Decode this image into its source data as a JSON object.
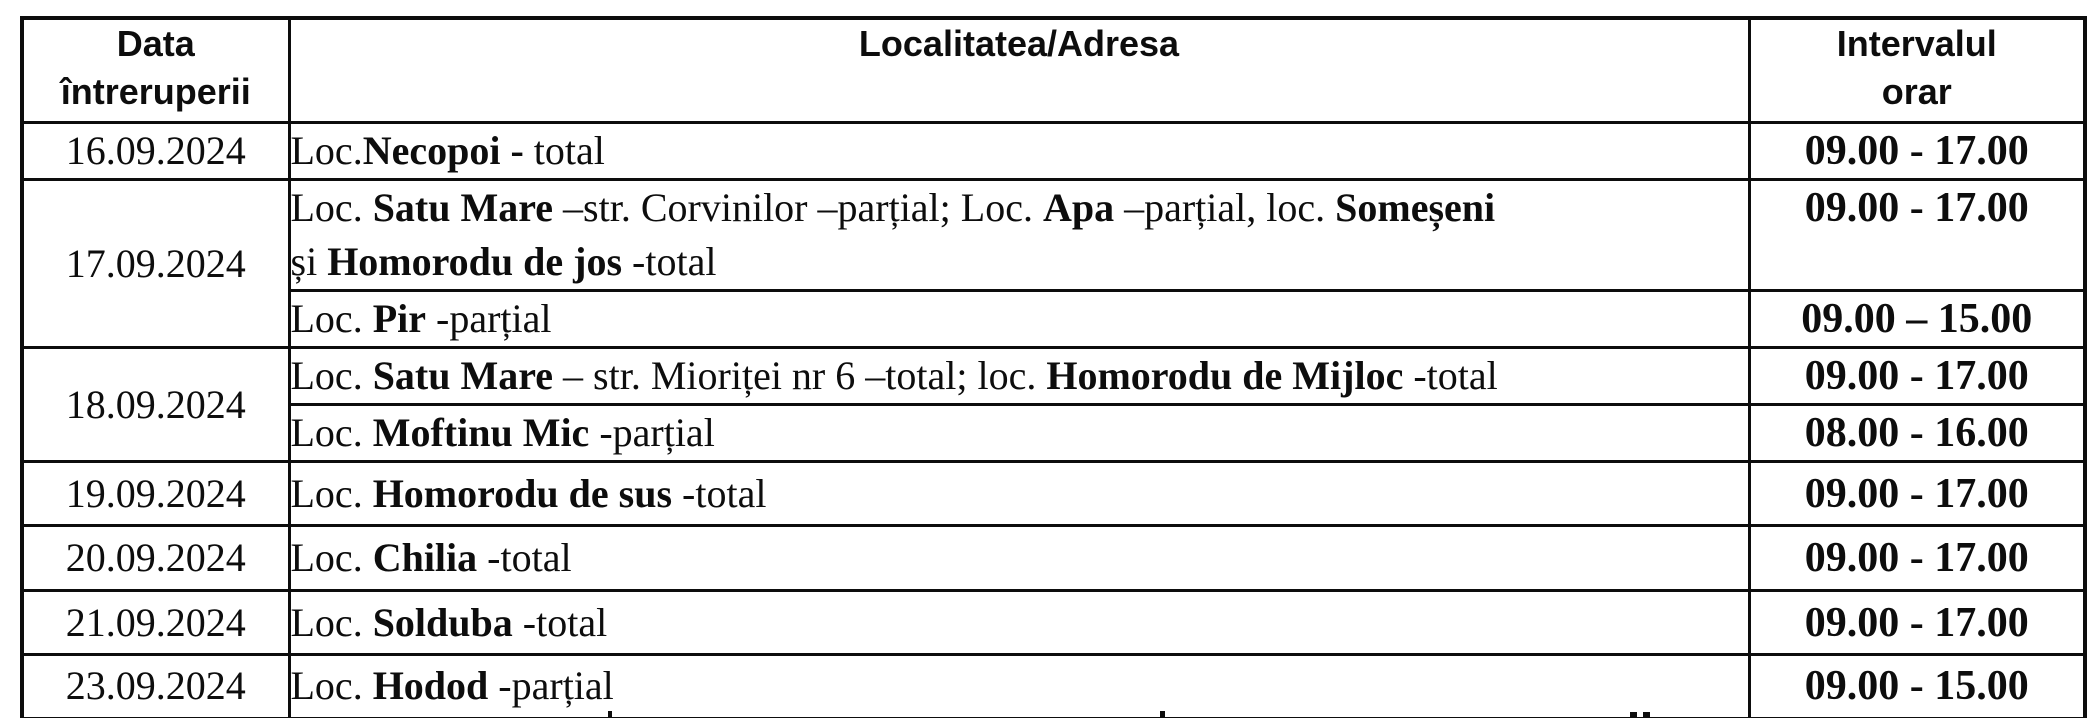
{
  "table": {
    "columns": [
      {
        "id": "date",
        "lines": [
          "Data",
          "întreruperii"
        ]
      },
      {
        "id": "location",
        "lines": [
          "Localitatea/Adresa"
        ]
      },
      {
        "id": "interval",
        "lines": [
          "Intervalul",
          "orar"
        ]
      }
    ],
    "rows": [
      {
        "date": "16.09.2024",
        "date_rowspan": 1,
        "segments": [
          {
            "text": "Loc.",
            "bold": false
          },
          {
            "text": "Necopoi -",
            "bold": true
          },
          {
            "text": " total",
            "bold": false
          }
        ],
        "interval": "09.00 - 17.00"
      },
      {
        "date": "17.09.2024",
        "date_rowspan": 2,
        "segments": [
          {
            "text": "Loc. ",
            "bold": false
          },
          {
            "text": "Satu Mare ",
            "bold": true
          },
          {
            "text": "–str. Corvinilor –parțial; Loc. ",
            "bold": false
          },
          {
            "text": "Apa ",
            "bold": true
          },
          {
            "text": "–parțial, loc. ",
            "bold": false
          },
          {
            "text": "Someșeni",
            "bold": true
          },
          {
            "br": true
          },
          {
            "text": "și ",
            "bold": false
          },
          {
            "text": "Homorodu de jos",
            "bold": true
          },
          {
            "text": "  -total",
            "bold": false
          }
        ],
        "interval": "09.00 - 17.00"
      },
      {
        "segments": [
          {
            "text": "Loc. ",
            "bold": false
          },
          {
            "text": "Pir",
            "bold": true
          },
          {
            "text": " -parțial",
            "bold": false
          }
        ],
        "interval": "09.00 – 15.00"
      },
      {
        "date": "18.09.2024",
        "date_rowspan": 2,
        "segments": [
          {
            "text": "Loc. ",
            "bold": false
          },
          {
            "text": "Satu Mare",
            "bold": true
          },
          {
            "text": " – str. Mioriței nr 6 –total; loc. ",
            "bold": false
          },
          {
            "text": "Homorodu de Mijloc",
            "bold": true
          },
          {
            "text": " -total",
            "bold": false
          }
        ],
        "interval": "09.00 - 17.00"
      },
      {
        "segments": [
          {
            "text": "Loc. ",
            "bold": false
          },
          {
            "text": "Moftinu Mic",
            "bold": true
          },
          {
            "text": " -parțial",
            "bold": false
          }
        ],
        "interval": "08.00 - 16.00"
      },
      {
        "date": "19.09.2024",
        "date_rowspan": 1,
        "segments": [
          {
            "text": "Loc. ",
            "bold": false
          },
          {
            "text": "Homorodu de sus",
            "bold": true
          },
          {
            "text": " -total",
            "bold": false
          }
        ],
        "interval": "09.00 - 17.00"
      },
      {
        "date": "20.09.2024",
        "date_rowspan": 1,
        "segments": [
          {
            "text": "Loc. ",
            "bold": false
          },
          {
            "text": "Chilia",
            "bold": true
          },
          {
            "text": " -total",
            "bold": false
          }
        ],
        "interval": "09.00 - 17.00"
      },
      {
        "date": "21.09.2024",
        "date_rowspan": 1,
        "segments": [
          {
            "text": "Loc. ",
            "bold": false
          },
          {
            "text": "Solduba",
            "bold": true
          },
          {
            "text": " -total",
            "bold": false
          }
        ],
        "interval": "09.00 - 17.00"
      },
      {
        "date": "23.09.2024",
        "date_rowspan": 1,
        "segments": [
          {
            "text": "Loc. ",
            "bold": false
          },
          {
            "text": "Hodod",
            "bold": true
          },
          {
            "text": " -parțial",
            "bold": false
          }
        ],
        "interval": "09.00 - 15.00"
      }
    ]
  }
}
